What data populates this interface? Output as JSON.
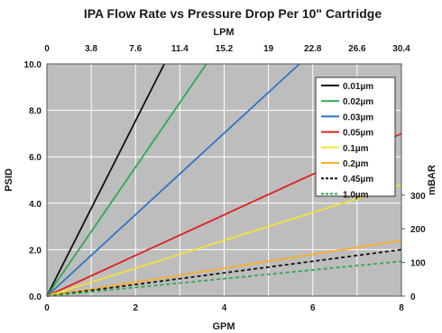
{
  "chart_data": {
    "type": "line",
    "title": "IPA Flow Rate vs Pressure Drop Per 10\" Cartridge",
    "xlabel": "GPM",
    "ylabel": "PSID",
    "x2label": "LPM",
    "y2label": "mBAR",
    "xlim": [
      0,
      8
    ],
    "ylim": [
      0,
      10
    ],
    "x_ticks": [
      0,
      2,
      4,
      6,
      8
    ],
    "y_ticks": [
      "0.0",
      "2.0",
      "4.0",
      "6.0",
      "8.0",
      "10.0"
    ],
    "x2_ticks": [
      "0",
      "3.8",
      "7.6",
      "11.4",
      "15.2",
      "19",
      "22.8",
      "26.6",
      "30.4"
    ],
    "y2_ticks": [
      "0",
      "100",
      "200",
      "300"
    ],
    "y2_tick_values_psid": [
      0,
      1.45,
      2.9,
      4.35
    ],
    "grid": true,
    "legend_position": "top-right",
    "series": [
      {
        "name": "0.01µm",
        "color": "#111111",
        "dash": false,
        "x": [
          0,
          2.65
        ],
        "y": [
          0,
          10
        ]
      },
      {
        "name": "0.02µm",
        "color": "#2ea84f",
        "dash": false,
        "x": [
          0,
          3.6
        ],
        "y": [
          0,
          10
        ]
      },
      {
        "name": "0.03µm",
        "color": "#2e75c6",
        "dash": false,
        "x": [
          0,
          5.7
        ],
        "y": [
          0,
          10
        ]
      },
      {
        "name": "0.05µm",
        "color": "#e02020",
        "dash": false,
        "x": [
          0,
          8
        ],
        "y": [
          0,
          7.0
        ]
      },
      {
        "name": "0.1µm",
        "color": "#f2e23a",
        "dash": false,
        "x": [
          0,
          8
        ],
        "y": [
          0,
          4.8
        ]
      },
      {
        "name": "0.2µm",
        "color": "#f5b12a",
        "dash": false,
        "x": [
          0,
          8
        ],
        "y": [
          0,
          2.4
        ]
      },
      {
        "name": "0.45µm",
        "color": "#111111",
        "dash": true,
        "x": [
          0,
          8
        ],
        "y": [
          0,
          2.0
        ]
      },
      {
        "name": "1.0µm",
        "color": "#2ea84f",
        "dash": true,
        "x": [
          0,
          8
        ],
        "y": [
          0,
          1.5
        ]
      }
    ]
  }
}
